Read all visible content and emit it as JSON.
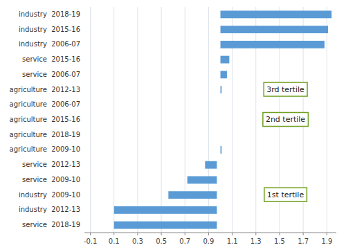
{
  "chart_data": {
    "type": "bar",
    "orientation": "horizontal",
    "categories": [
      "industry  2018-19",
      "industry  2015-16",
      "industry  2006-07",
      "service  2015-16",
      "service  2006-07",
      "agriculture  2012-13",
      "agriculture  2006-07",
      "agriculture  2015-16",
      "agriculture  2018-19",
      "agriculture  2009-10",
      "service  2012-13",
      "service  2009-10",
      "industry  2009-10",
      "industry  2012-13",
      "service  2018-19"
    ],
    "starts": [
      1.0,
      1.0,
      1.0,
      1.0,
      1.0,
      1.0,
      0.0,
      0.0,
      0.0,
      1.0,
      0.87,
      0.72,
      0.56,
      0.1,
      0.1
    ],
    "ends": [
      1.94,
      1.91,
      1.88,
      1.075,
      1.055,
      1.01,
      0.0,
      0.0,
      0.0,
      1.01,
      0.97,
      0.97,
      0.97,
      0.97,
      0.97
    ],
    "color": "#5b9bd5",
    "xlim": [
      -0.15,
      1.98
    ],
    "xticks": [
      -0.1,
      0.1,
      0.3,
      0.5,
      0.7,
      0.9,
      1.1,
      1.3,
      1.5,
      1.7,
      1.9
    ],
    "grid": true,
    "annotations": [
      {
        "text": "3rd tertile",
        "x": 1.55,
        "category": "agriculture  2012-13"
      },
      {
        "text": "2nd tertile",
        "x": 1.55,
        "category": "agriculture  2015-16"
      },
      {
        "text": "1st tertile",
        "x": 1.55,
        "category": "industry  2009-10"
      }
    ]
  }
}
